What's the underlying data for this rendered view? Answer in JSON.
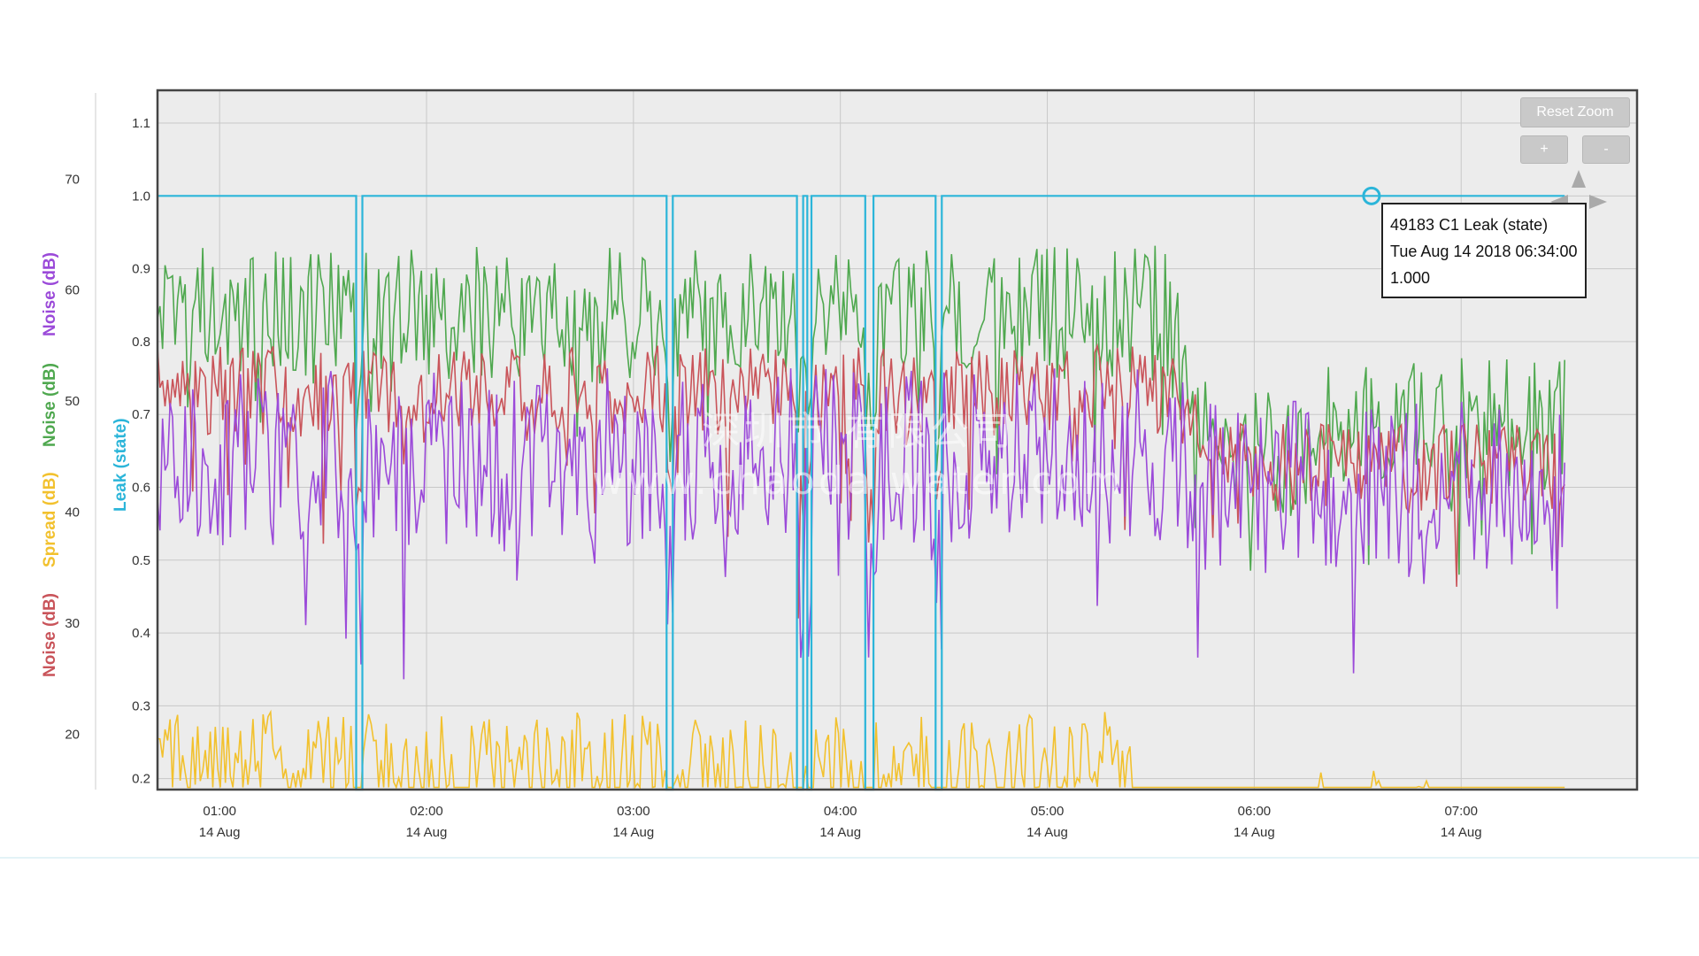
{
  "colors": {
    "noise_red": "#c9545a",
    "spread_yellow": "#f2c12e",
    "noise_green": "#4fa84f",
    "leak_cyan": "#2bb5d9",
    "noise_purple": "#9b4ad9",
    "plot_bg": "#ececec",
    "grid": "#c8c8c8"
  },
  "axis_titles": {
    "noise_red": "Noise (dB)",
    "spread": "Spread (dB)",
    "noise_green": "Noise (dB)",
    "noise_purple": "Noise (dB)",
    "leak": "Leak (state)"
  },
  "controls": {
    "reset_zoom": "Reset Zoom",
    "zoom_in": "+",
    "zoom_out": "-"
  },
  "tooltip": {
    "line1": "49183 C1 Leak (state)",
    "line2": "Tue Aug 14 2018 06:34:00",
    "line3": "1.000"
  },
  "watermark": {
    "line1": "深圳市 有限公司",
    "line2": "www.chaoda water.com"
  },
  "chart_data": {
    "type": "line",
    "x_ticks": [
      {
        "time": "01:00",
        "date": "14 Aug"
      },
      {
        "time": "02:00",
        "date": "14 Aug"
      },
      {
        "time": "03:00",
        "date": "14 Aug"
      },
      {
        "time": "04:00",
        "date": "14 Aug"
      },
      {
        "time": "05:00",
        "date": "14 Aug"
      },
      {
        "time": "06:00",
        "date": "14 Aug"
      },
      {
        "time": "07:00",
        "date": "14 Aug"
      }
    ],
    "x_range_hours": [
      0.7,
      7.85
    ],
    "left_axis_ticks": [
      20,
      30,
      40,
      50,
      60,
      70
    ],
    "left_axis_range": [
      15,
      78
    ],
    "leak_axis_ticks": [
      "0.2",
      "0.3",
      "0.4",
      "0.5",
      "0.6",
      "0.7",
      "0.8",
      "0.9",
      "1.0",
      "1.1"
    ],
    "leak_axis_range": [
      0.185,
      1.145
    ],
    "leak_series": {
      "name": "49183 C1 Leak (state)",
      "base": 1.0,
      "low": 0.185,
      "drops_hours": [
        [
          1.66,
          1.69
        ],
        [
          3.16,
          3.19
        ],
        [
          3.79,
          3.82
        ],
        [
          3.84,
          3.86
        ],
        [
          4.12,
          4.16
        ],
        [
          4.46,
          4.49
        ]
      ],
      "end_hour": 7.5
    },
    "tooltip_point": {
      "time": "06:34:00",
      "value": 1.0
    },
    "series_profiles": [
      {
        "name": "noise_green",
        "mean_early": 58,
        "mean_late": 48,
        "amplitude": 6,
        "spike": 10
      },
      {
        "name": "noise_red",
        "mean_early": 51,
        "mean_late": 44,
        "amplitude": 4,
        "spike": 12
      },
      {
        "name": "noise_purple",
        "mean_early": 45,
        "mean_late": 42,
        "amplitude": 8,
        "spike": 14
      },
      {
        "name": "spread_yellow",
        "mean_early": 17,
        "mean_late": 13,
        "amplitude": 5,
        "spike": 12
      }
    ]
  }
}
